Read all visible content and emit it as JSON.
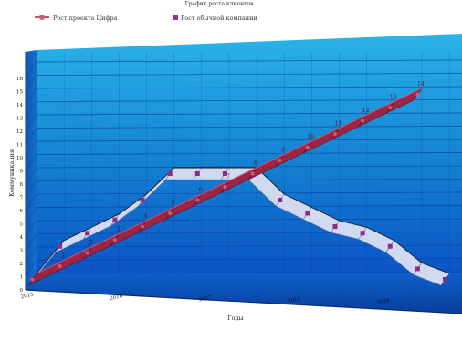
{
  "chart_data": {
    "type": "line",
    "title": "График роста клиентов",
    "xlabel": "Годы",
    "ylabel": "Коммуникация",
    "x_tick_labels": [
      "2015",
      "2016",
      "2017",
      "2018",
      "2019"
    ],
    "y_ticks": [
      0,
      1,
      2,
      3,
      4,
      5,
      6,
      7,
      8,
      9,
      10,
      11,
      12,
      13,
      14,
      15,
      16
    ],
    "ylim": [
      0,
      16
    ],
    "xlim": [
      0,
      15
    ],
    "grid": true,
    "legend_position": "top",
    "background": "3d-blue-gradient",
    "series": [
      {
        "name": "Рост проекта Цифра",
        "color": "#8b1a36",
        "style": "3d-ribbon",
        "x": [
          0,
          1,
          2,
          3,
          4,
          5,
          6,
          7,
          8,
          9,
          10,
          11,
          12,
          13,
          14
        ],
        "y": [
          0,
          1,
          2,
          3,
          4,
          5,
          6,
          7,
          8,
          9,
          10,
          11,
          12,
          13,
          14
        ],
        "point_labels": [
          "",
          "1",
          "2",
          "3",
          "4",
          "5",
          "6",
          "7",
          "8",
          "9",
          "10",
          "11",
          "12",
          "13",
          "14"
        ]
      },
      {
        "name": "Рост обычной компании",
        "color": "#c9d6ee",
        "style": "3d-ribbon",
        "x": [
          0,
          1,
          2,
          3,
          4,
          5,
          6,
          7,
          8,
          9,
          10,
          11,
          12,
          13,
          14,
          15
        ],
        "y": [
          0,
          2.5,
          3.5,
          4.5,
          6,
          8,
          8,
          8,
          8,
          6,
          5,
          4,
          3.5,
          2.5,
          0.8,
          0
        ],
        "point_labels": []
      }
    ]
  }
}
